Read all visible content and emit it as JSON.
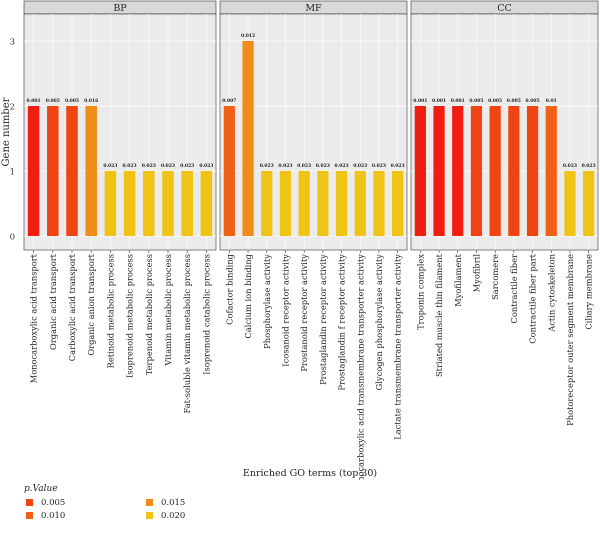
{
  "chart_data": {
    "type": "bar",
    "ylabel": "Gene number",
    "xlabel": "Enriched GO terms (top 30)",
    "ylim": [
      0,
      3.2
    ],
    "yticks": [
      0,
      1,
      2,
      3
    ],
    "facets": [
      {
        "name": "BP",
        "categories": [
          "Monocarboxylic acid transport",
          "Organic acid transport",
          "Carboxylic acid transport",
          "Organic anion transport",
          "Retinoid metabolic process",
          "Isoprenoid metabolic process",
          "Terpenoid metabolic process",
          "Vitamin metabolic process",
          "Fat-soluble vitamin metabolic process",
          "Isoprenoid catabolic process"
        ],
        "values": [
          2,
          2,
          2,
          2,
          1,
          1,
          1,
          1,
          1,
          1
        ],
        "pvalue_labels": [
          "0.001",
          "0.005",
          "0.005",
          "0.016",
          "0.023",
          "0.023",
          "0.023",
          "0.023",
          "0.023",
          "0.023"
        ],
        "colors": [
          "#f01d11",
          "#f04512",
          "#f04512",
          "#f08c18",
          "#f0c414",
          "#f0c414",
          "#f0c414",
          "#f0c414",
          "#f0c414",
          "#f0c414"
        ]
      },
      {
        "name": "MF",
        "categories": [
          "Cofactor binding",
          "Calcium ion binding",
          "Phosphorylase activity",
          "Icosanoid receptor activity",
          "Prostanoid receptor activity",
          "Prostaglandin receptor activity",
          "Prostaglandin f receptor activity",
          "Monocarboxylic acid transmembrane transporter activity",
          "Glycogen phosphorylase activity",
          "Lactate transmembrane transporter activity"
        ],
        "values": [
          2,
          3,
          1,
          1,
          1,
          1,
          1,
          1,
          1,
          1
        ],
        "pvalue_labels": [
          "0.007",
          "0.012",
          "0.023",
          "0.023",
          "0.023",
          "0.023",
          "0.023",
          "0.023",
          "0.023",
          "0.023"
        ],
        "colors": [
          "#f06016",
          "#f08c18",
          "#f0c414",
          "#f0c414",
          "#f0c414",
          "#f0c414",
          "#f0c414",
          "#f0c414",
          "#f0c414",
          "#f0c414"
        ]
      },
      {
        "name": "CC",
        "categories": [
          "Troponin complex",
          "Striated muscle thin filament",
          "Myofilament",
          "Myofibril",
          "Sarcomere",
          "Contractile fiber",
          "Contractile fiber part",
          "Actin cytoskeleton",
          "Photoreceptor outer segment membrane",
          "Ciliary membrane"
        ],
        "values": [
          2,
          2,
          2,
          2,
          2,
          2,
          2,
          2,
          1,
          1
        ],
        "pvalue_labels": [
          "0.001",
          "0.001",
          "0.001",
          "0.005",
          "0.005",
          "0.005",
          "0.005",
          "0.01",
          "0.023",
          "0.023"
        ],
        "colors": [
          "#f01d11",
          "#f01d11",
          "#f01d11",
          "#f04512",
          "#f04512",
          "#f04512",
          "#f04512",
          "#f06016",
          "#f0c414",
          "#f0c414"
        ]
      }
    ],
    "legend": {
      "title": "p.Value",
      "placement": "bottom-left",
      "items": [
        {
          "label": "0.005",
          "color": "#f04512"
        },
        {
          "label": "0.010",
          "color": "#f06016"
        },
        {
          "label": "0.015",
          "color": "#f08c18"
        },
        {
          "label": "0.020",
          "color": "#f0c414"
        }
      ]
    },
    "style": {
      "panel_background": "#ebebeb",
      "grid_color": "#ffffff",
      "strip_background": "#d9d9d9"
    }
  }
}
